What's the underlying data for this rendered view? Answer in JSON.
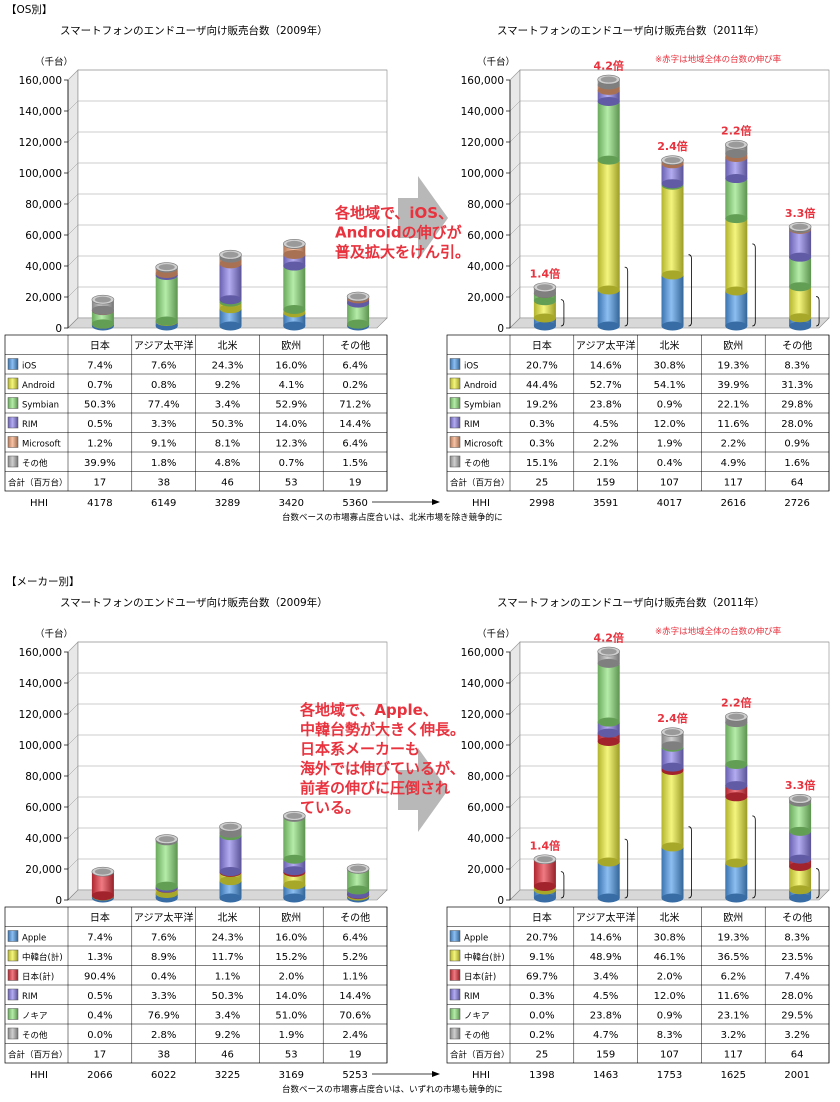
{
  "regions": [
    "日本",
    "アジア太平洋",
    "北米",
    "欧州",
    "その他"
  ],
  "colors": {
    "blue": "#4f9bea",
    "yellow": "#eef03a",
    "green": "#8de27a",
    "purple": "#8a80ea",
    "orange": "#f2a277",
    "gray": "#b5b5b5",
    "red": "#e8323e"
  },
  "sections": [
    {
      "header": "【OS別】",
      "note": "台数ベースの市場寡占度合いは、北米市場を除き競争的に",
      "categories": [
        {
          "label": "iOS",
          "color_key": "blue"
        },
        {
          "label": "Android",
          "color_key": "yellow"
        },
        {
          "label": "Symbian",
          "color_key": "green"
        },
        {
          "label": "RIM",
          "color_key": "purple"
        },
        {
          "label": "Microsoft",
          "color_key": "orange"
        },
        {
          "label": "その他",
          "color_key": "gray"
        }
      ],
      "callout": [
        "各地域で、iOS、",
        "Androidの伸びが",
        "普及拡大をけん引。"
      ],
      "left": {
        "title": "スマートフォンのエンドユーザ向け販売台数（2009年）",
        "unit": "（千台）",
        "pct": [
          [
            "7.4%",
            "0.7%",
            "50.3%",
            "0.5%",
            "1.2%",
            "39.9%"
          ],
          [
            "7.6%",
            "0.8%",
            "77.4%",
            "3.3%",
            "9.1%",
            "1.8%"
          ],
          [
            "24.3%",
            "9.2%",
            "3.4%",
            "50.3%",
            "8.1%",
            "4.8%"
          ],
          [
            "16.0%",
            "4.1%",
            "52.9%",
            "14.0%",
            "12.3%",
            "0.7%"
          ],
          [
            "6.4%",
            "0.2%",
            "71.2%",
            "14.4%",
            "6.4%",
            "1.5%"
          ]
        ],
        "totals": [
          "17",
          "38",
          "46",
          "53",
          "19"
        ],
        "hhi": [
          "4178",
          "6149",
          "3289",
          "3420",
          "5360"
        ]
      },
      "right": {
        "title": "スマートフォンのエンドユーザ向け販売台数（2011年）",
        "unit": "（千台）",
        "red_note": "※赤字は地域全体の台数の伸び率",
        "growth": [
          "1.4倍",
          "4.2倍",
          "2.4倍",
          "2.2倍",
          "3.3倍"
        ],
        "pct": [
          [
            "20.7%",
            "44.4%",
            "19.2%",
            "0.3%",
            "0.3%",
            "15.1%"
          ],
          [
            "14.6%",
            "52.7%",
            "23.8%",
            "4.5%",
            "2.2%",
            "2.1%"
          ],
          [
            "30.8%",
            "54.1%",
            "0.9%",
            "12.0%",
            "1.9%",
            "0.4%"
          ],
          [
            "19.3%",
            "39.9%",
            "22.1%",
            "11.6%",
            "2.2%",
            "4.9%"
          ],
          [
            "8.3%",
            "31.3%",
            "29.8%",
            "28.0%",
            "0.9%",
            "1.6%"
          ]
        ],
        "totals": [
          "25",
          "159",
          "107",
          "117",
          "64"
        ],
        "hhi": [
          "2998",
          "3591",
          "4017",
          "2616",
          "2726"
        ]
      }
    },
    {
      "header": "【メーカー別】",
      "note": "台数ベースの市場寡占度合いは、いずれの市場も競争的に",
      "categories": [
        {
          "label": "Apple",
          "color_key": "blue"
        },
        {
          "label": "中韓台(計)",
          "color_key": "yellow"
        },
        {
          "label": "日本(計)",
          "color_key": "red"
        },
        {
          "label": "RIM",
          "color_key": "purple"
        },
        {
          "label": "ノキア",
          "color_key": "green"
        },
        {
          "label": "その他",
          "color_key": "gray"
        }
      ],
      "callout": [
        "各地域で、Apple、",
        "中韓台勢が大きく伸長。",
        "日本系メーカーも",
        "海外では伸びているが、",
        "前者の伸びに圧倒され",
        "ている。"
      ],
      "left": {
        "title": "スマートフォンのエンドユーザ向け販売台数（2009年）",
        "unit": "（千台）",
        "pct": [
          [
            "7.4%",
            "1.3%",
            "90.4%",
            "0.5%",
            "0.4%",
            "0.0%"
          ],
          [
            "7.6%",
            "8.9%",
            "0.4%",
            "3.3%",
            "76.9%",
            "2.8%"
          ],
          [
            "24.3%",
            "11.7%",
            "1.1%",
            "50.3%",
            "3.4%",
            "9.2%"
          ],
          [
            "16.0%",
            "15.2%",
            "2.0%",
            "14.0%",
            "51.0%",
            "1.9%"
          ],
          [
            "6.4%",
            "5.2%",
            "1.1%",
            "14.4%",
            "70.6%",
            "2.4%"
          ]
        ],
        "totals": [
          "17",
          "38",
          "46",
          "53",
          "19"
        ],
        "hhi": [
          "2066",
          "6022",
          "3225",
          "3169",
          "5253"
        ]
      },
      "right": {
        "title": "スマートフォンのエンドユーザ向け販売台数（2011年）",
        "unit": "（千台）",
        "red_note": "※赤字は地域全体の台数の伸び率",
        "growth": [
          "1.4倍",
          "4.2倍",
          "2.4倍",
          "2.2倍",
          "3.3倍"
        ],
        "pct": [
          [
            "20.7%",
            "9.1%",
            "69.7%",
            "0.3%",
            "0.0%",
            "0.2%"
          ],
          [
            "14.6%",
            "48.9%",
            "3.4%",
            "4.5%",
            "23.8%",
            "4.7%"
          ],
          [
            "30.8%",
            "46.1%",
            "2.0%",
            "12.0%",
            "0.9%",
            "8.3%"
          ],
          [
            "19.3%",
            "36.5%",
            "6.2%",
            "11.6%",
            "23.1%",
            "3.2%"
          ],
          [
            "8.3%",
            "23.5%",
            "7.4%",
            "28.0%",
            "29.5%",
            "3.2%"
          ]
        ],
        "totals": [
          "25",
          "159",
          "107",
          "117",
          "64"
        ],
        "hhi": [
          "1398",
          "1463",
          "1753",
          "1625",
          "2001"
        ]
      }
    }
  ],
  "labels": {
    "total": "合計（百万台）",
    "hhi": "HHI"
  },
  "chart_data": [
    {
      "type": "bar",
      "stacked": true,
      "title": "スマートフォンのエンドユーザ向け販売台数（2009年）",
      "unit": "千台",
      "ylim": [
        0,
        160000
      ],
      "yticks": [
        0,
        20000,
        40000,
        60000,
        80000,
        100000,
        120000,
        140000,
        160000
      ],
      "categories": [
        "日本",
        "アジア太平洋",
        "北米",
        "欧州",
        "その他"
      ],
      "totals": [
        17000,
        38000,
        46000,
        53000,
        19000
      ],
      "series_names": [
        "iOS",
        "Android",
        "Symbian",
        "RIM",
        "Microsoft",
        "その他"
      ]
    },
    {
      "type": "bar",
      "stacked": true,
      "title": "スマートフォンのエンドユーザ向け販売台数（2011年）",
      "unit": "千台",
      "ylim": [
        0,
        160000
      ],
      "yticks": [
        0,
        20000,
        40000,
        60000,
        80000,
        100000,
        120000,
        140000,
        160000
      ],
      "categories": [
        "日本",
        "アジア太平洋",
        "北米",
        "欧州",
        "その他"
      ],
      "totals": [
        25000,
        159000,
        107000,
        117000,
        64000
      ],
      "series_names": [
        "iOS",
        "Android",
        "Symbian",
        "RIM",
        "Microsoft",
        "その他"
      ]
    },
    {
      "type": "bar",
      "stacked": true,
      "title": "スマートフォンのエンドユーザ向け販売台数（2009年）",
      "unit": "千台",
      "ylim": [
        0,
        160000
      ],
      "yticks": [
        0,
        20000,
        40000,
        60000,
        80000,
        100000,
        120000,
        140000,
        160000
      ],
      "categories": [
        "日本",
        "アジア太平洋",
        "北米",
        "欧州",
        "その他"
      ],
      "totals": [
        17000,
        38000,
        46000,
        53000,
        19000
      ],
      "series_names": [
        "Apple",
        "中韓台(計)",
        "日本(計)",
        "RIM",
        "ノキア",
        "その他"
      ]
    },
    {
      "type": "bar",
      "stacked": true,
      "title": "スマートフォンのエンドユーザ向け販売台数（2011年）",
      "unit": "千台",
      "ylim": [
        0,
        160000
      ],
      "yticks": [
        0,
        20000,
        40000,
        60000,
        80000,
        100000,
        120000,
        140000,
        160000
      ],
      "categories": [
        "日本",
        "アジア太平洋",
        "北米",
        "欧州",
        "その他"
      ],
      "totals": [
        25000,
        159000,
        107000,
        117000,
        64000
      ],
      "series_names": [
        "Apple",
        "中韓台(計)",
        "日本(計)",
        "RIM",
        "ノキア",
        "その他"
      ]
    }
  ]
}
